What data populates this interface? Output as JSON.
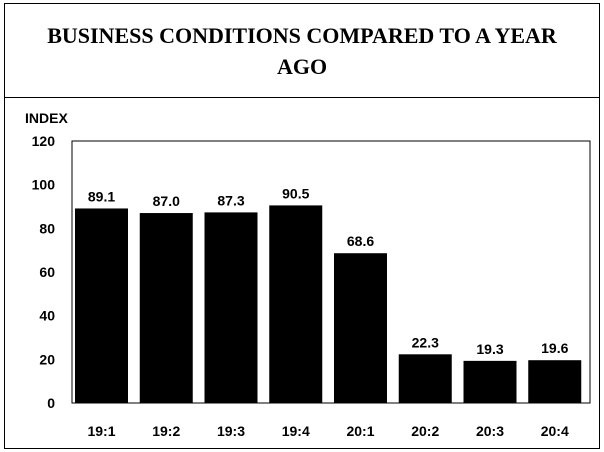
{
  "chart_data": {
    "type": "bar",
    "title": "BUSINESS CONDITIONS COMPARED TO A YEAR AGO",
    "ylabel": "INDEX",
    "xlabel": "",
    "categories": [
      "19:1",
      "19:2",
      "19:3",
      "19:4",
      "20:1",
      "20:2",
      "20:3",
      "20:4"
    ],
    "values": [
      89.1,
      87.0,
      87.3,
      90.5,
      68.6,
      22.3,
      19.3,
      19.6
    ],
    "data_labels": [
      "89.1",
      "87.0",
      "87.3",
      "90.5",
      "68.6",
      "22.3",
      "19.3",
      "19.6"
    ],
    "ylim": [
      0,
      120
    ],
    "yticks": [
      0,
      20,
      40,
      60,
      80,
      100,
      120
    ],
    "grid": false,
    "legend": "none",
    "bar_color": "#000000"
  }
}
